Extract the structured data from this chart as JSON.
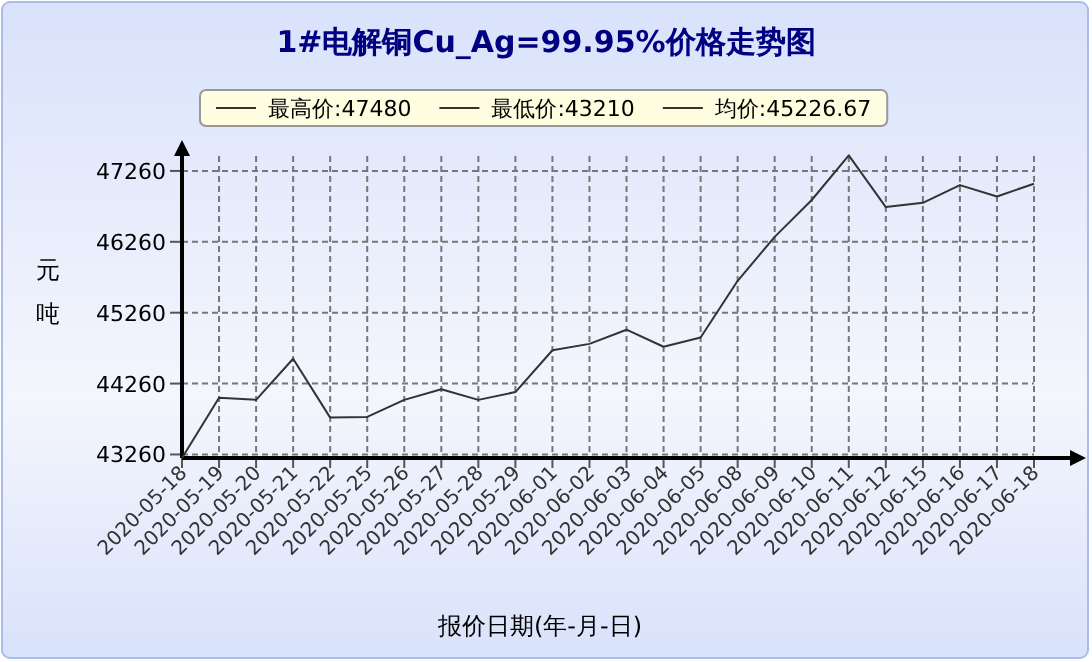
{
  "chart_data": {
    "type": "line",
    "title": "1#电解铜Cu_Ag=99.95%价格走势图",
    "xlabel": "报价日期(年-月-日)",
    "ylabel": "元吨",
    "categories": [
      "2020-05-18",
      "2020-05-19",
      "2020-05-20",
      "2020-05-21",
      "2020-05-22",
      "2020-05-25",
      "2020-05-26",
      "2020-05-27",
      "2020-05-28",
      "2020-05-29",
      "2020-06-01",
      "2020-06-02",
      "2020-06-03",
      "2020-06-04",
      "2020-06-05",
      "2020-06-08",
      "2020-06-09",
      "2020-06-10",
      "2020-06-11",
      "2020-06-12",
      "2020-06-15",
      "2020-06-16",
      "2020-06-17",
      "2020-06-18"
    ],
    "series": [
      {
        "color": "#333333",
        "values": [
          43210,
          44060,
          44030,
          44610,
          43780,
          43790,
          44030,
          44180,
          44030,
          44140,
          44730,
          44820,
          45020,
          44780,
          44910,
          45710,
          46330,
          46850,
          47480,
          46750,
          46810,
          47060,
          46900,
          47080
        ]
      }
    ],
    "ylim": [
      43210,
      47640
    ],
    "yticks": [
      43260,
      44260,
      45260,
      46260,
      47260
    ],
    "grid": true,
    "marker": "none",
    "line_style": "solid",
    "annotations": [
      "最高价:47480",
      "最低价:43210",
      "均价:45226.67"
    ]
  }
}
